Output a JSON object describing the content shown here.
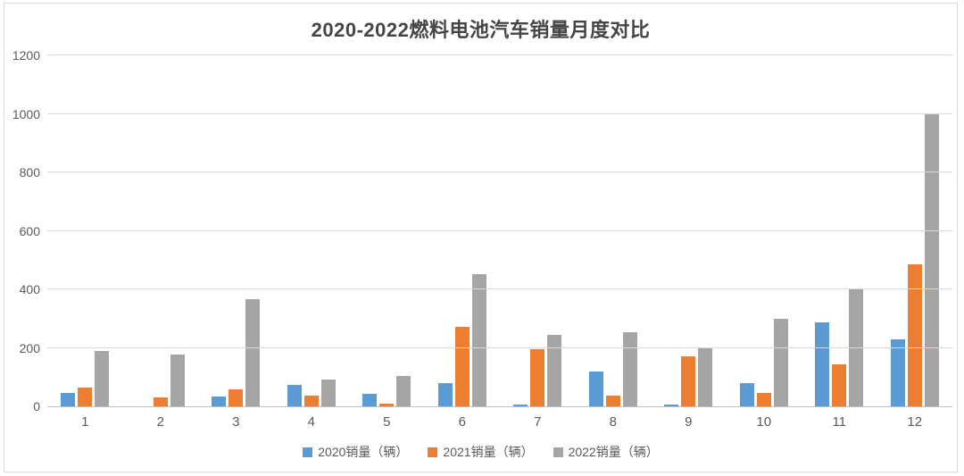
{
  "chart_data": {
    "type": "bar",
    "title": "2020-2022燃料电池汽车销量月度对比",
    "xlabel": "",
    "ylabel": "",
    "categories": [
      "1",
      "2",
      "3",
      "4",
      "5",
      "6",
      "7",
      "8",
      "9",
      "10",
      "11",
      "12"
    ],
    "series": [
      {
        "name": "2020销量（辆）",
        "color": "#5B9BD5",
        "values": [
          45,
          0,
          35,
          72,
          42,
          80,
          5,
          120,
          5,
          80,
          288,
          228
        ]
      },
      {
        "name": "2021销量（辆）",
        "color": "#ED7D31",
        "values": [
          63,
          30,
          58,
          38,
          10,
          272,
          195,
          38,
          172,
          46,
          145,
          485
        ]
      },
      {
        "name": "2022销量（辆）",
        "color": "#A5A5A5",
        "values": [
          190,
          178,
          365,
          93,
          103,
          453,
          245,
          253,
          200,
          300,
          400,
          1000
        ]
      }
    ],
    "ylim": [
      0,
      1200
    ],
    "yticks": [
      0,
      200,
      400,
      600,
      800,
      1000,
      1200
    ],
    "grid": true,
    "legend_position": "bottom"
  },
  "colors": {
    "grid": "#d9d9d9",
    "axis_line": "#bfbfbf",
    "axis_text": "#595959",
    "title_text": "#454545"
  }
}
